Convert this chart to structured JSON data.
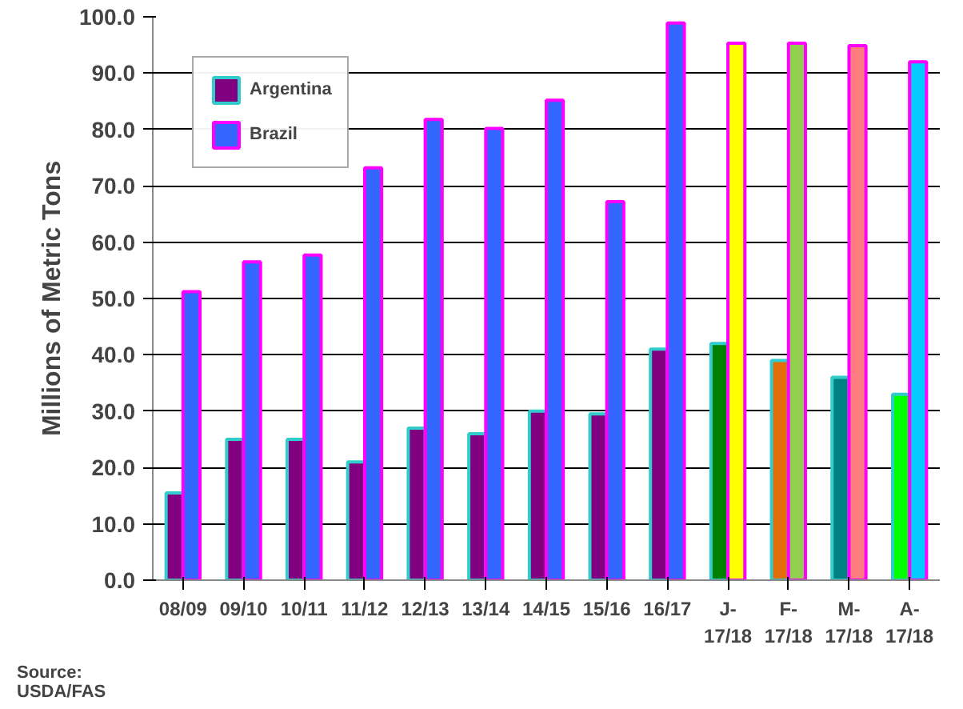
{
  "chart_data": {
    "type": "bar",
    "ylabel": "Millions of Metric Tons",
    "categories": [
      "08/09",
      "09/10",
      "10/11",
      "11/12",
      "12/13",
      "13/14",
      "14/15",
      "15/16",
      "16/17",
      "J-\n17/18",
      "F-\n17/18",
      "M-\n17/18",
      "A-\n17/18"
    ],
    "series": [
      {
        "name": "Argentina",
        "colors": [
          "#800080",
          "#800080",
          "#800080",
          "#800080",
          "#800080",
          "#800080",
          "#800080",
          "#800080",
          "#800080",
          "#008000",
          "#e36c0a",
          "#008080",
          "#00ff00"
        ],
        "values": [
          15.5,
          25.0,
          25.0,
          21.0,
          27.0,
          26.0,
          30.0,
          29.5,
          41.0,
          42.0,
          39.0,
          36.0,
          33.0
        ]
      },
      {
        "name": "Brazil",
        "colors": [
          "#3366ff",
          "#3366ff",
          "#3366ff",
          "#3366ff",
          "#3366ff",
          "#3366ff",
          "#3366ff",
          "#3366ff",
          "#3366ff",
          "#ffff00",
          "#92d050",
          "#ff7c80",
          "#00ccff"
        ],
        "values": [
          51.2,
          56.5,
          57.7,
          73.2,
          81.8,
          80.2,
          85.2,
          67.2,
          98.9,
          95.3,
          95.3,
          94.9,
          92.0
        ]
      }
    ],
    "ylim": [
      0,
      100
    ],
    "yticks": [
      {
        "value": 0,
        "label": "0.0"
      },
      {
        "value": 10,
        "label": "10.0"
      },
      {
        "value": 20,
        "label": "20.0"
      },
      {
        "value": 30,
        "label": "30.0"
      },
      {
        "value": 40,
        "label": "40.0"
      },
      {
        "value": 50,
        "label": "50.0"
      },
      {
        "value": 60,
        "label": "60.0"
      },
      {
        "value": 70,
        "label": "70.0"
      },
      {
        "value": 80,
        "label": "80.0"
      },
      {
        "value": 90,
        "label": "90.0"
      },
      {
        "value": 100,
        "label": "100.0"
      }
    ],
    "grid": "y",
    "legend": "top left",
    "annotations": [
      "Source:\nUSDA/FAS"
    ]
  }
}
